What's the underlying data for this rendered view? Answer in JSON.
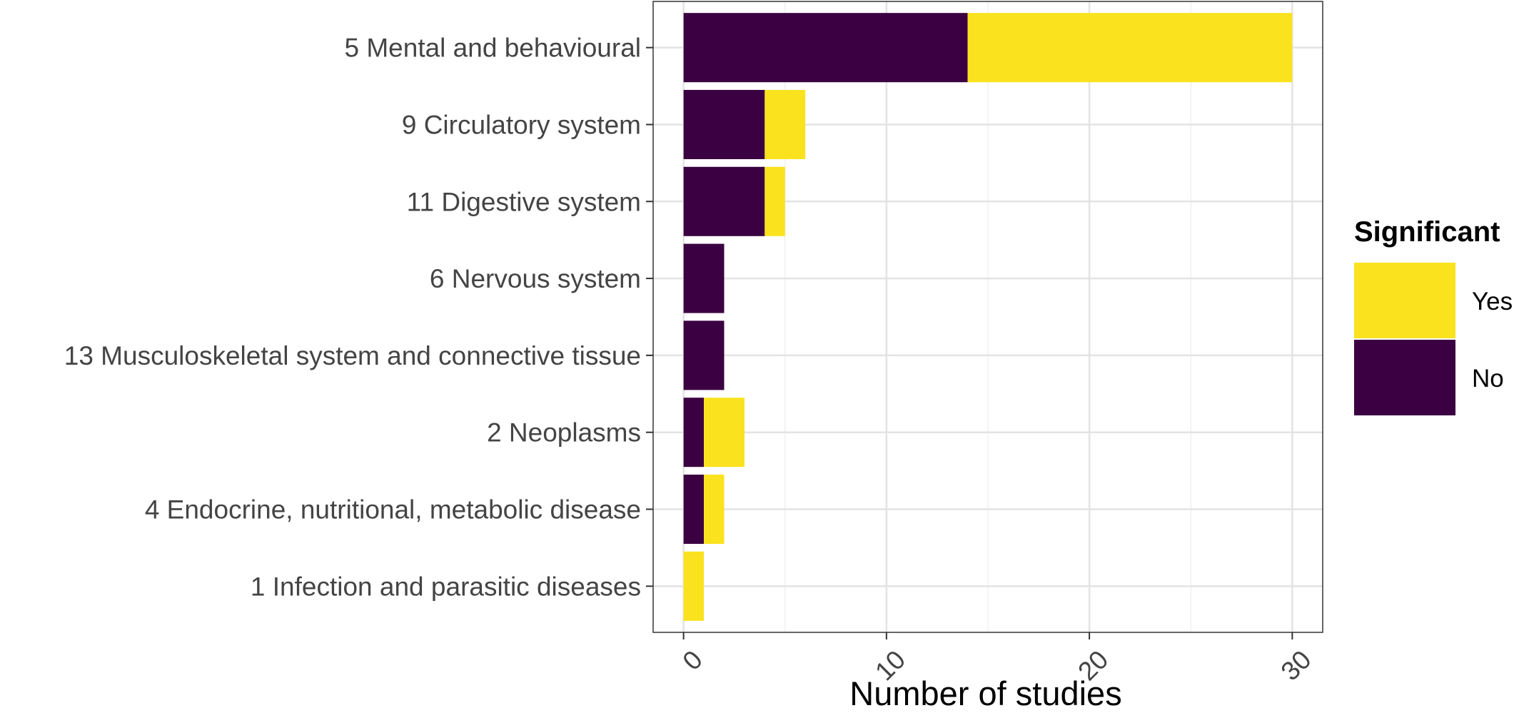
{
  "chart_data": {
    "type": "bar",
    "orientation": "horizontal",
    "stacked": true,
    "categories": [
      "5 Mental and behavioural",
      "9 Circulatory system",
      "11 Digestive system",
      "6 Nervous system",
      "13 Musculoskeletal system and connective tissue",
      "2 Neoplasms",
      "4 Endocrine, nutritional, metabolic disease",
      "1 Infection and parasitic diseases"
    ],
    "series": [
      {
        "name": "No",
        "color": "#3b0041",
        "values": [
          14,
          4,
          4,
          2,
          2,
          1,
          1,
          0
        ]
      },
      {
        "name": "Yes",
        "color": "#fae21e",
        "values": [
          16,
          2,
          1,
          0,
          0,
          2,
          1,
          1
        ]
      }
    ],
    "xticks": [
      0,
      10,
      20,
      30
    ],
    "xlabel": "Number of studies",
    "ylabel": "",
    "xlim": [
      -1.5,
      31.5
    ],
    "grid": true,
    "legend": {
      "title": "Significant",
      "position": "right",
      "order": [
        "Yes",
        "No"
      ]
    }
  }
}
